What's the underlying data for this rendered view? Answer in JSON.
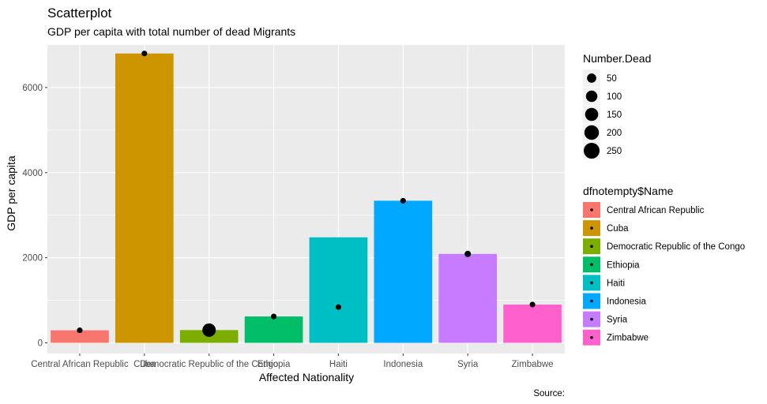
{
  "chart_data": {
    "type": "bar",
    "title": "Scatterplot",
    "subtitle": "GDP per capita with total number of dead Migrants",
    "xlabel": "Affected Nationality",
    "ylabel": "GDP per capita",
    "caption": "Source:",
    "ylim": [
      -250,
      7000
    ],
    "yticks": [
      0,
      2000,
      4000,
      6000
    ],
    "grid": true,
    "categories": [
      "Central African Republic",
      "Cuba",
      "Democratic Republic of the Congo",
      "Ethiopia",
      "Haiti",
      "Indonesia",
      "Syria",
      "Zimbabwe"
    ],
    "bar_values": [
      295,
      6800,
      300,
      620,
      2480,
      3340,
      2090,
      900
    ],
    "point_values": [
      295,
      6800,
      300,
      620,
      840,
      3340,
      2090,
      900
    ],
    "number_dead": [
      5,
      5,
      160,
      5,
      5,
      5,
      10,
      5
    ],
    "colors": [
      "#F8766D",
      "#CD9600",
      "#7CAE00",
      "#00BE67",
      "#00BFC4",
      "#00A9FF",
      "#C77CFF",
      "#FF61CC"
    ],
    "size_legend": {
      "title": "Number.Dead",
      "breaks": [
        50,
        100,
        150,
        200,
        250
      ]
    },
    "fill_legend": {
      "title": "dfnotempty$Name",
      "labels": [
        "Central African Republic",
        "Cuba",
        "Democratic Republic of the Congo",
        "Ethiopia",
        "Haiti",
        "Indonesia",
        "Syria",
        "Zimbabwe"
      ]
    }
  }
}
